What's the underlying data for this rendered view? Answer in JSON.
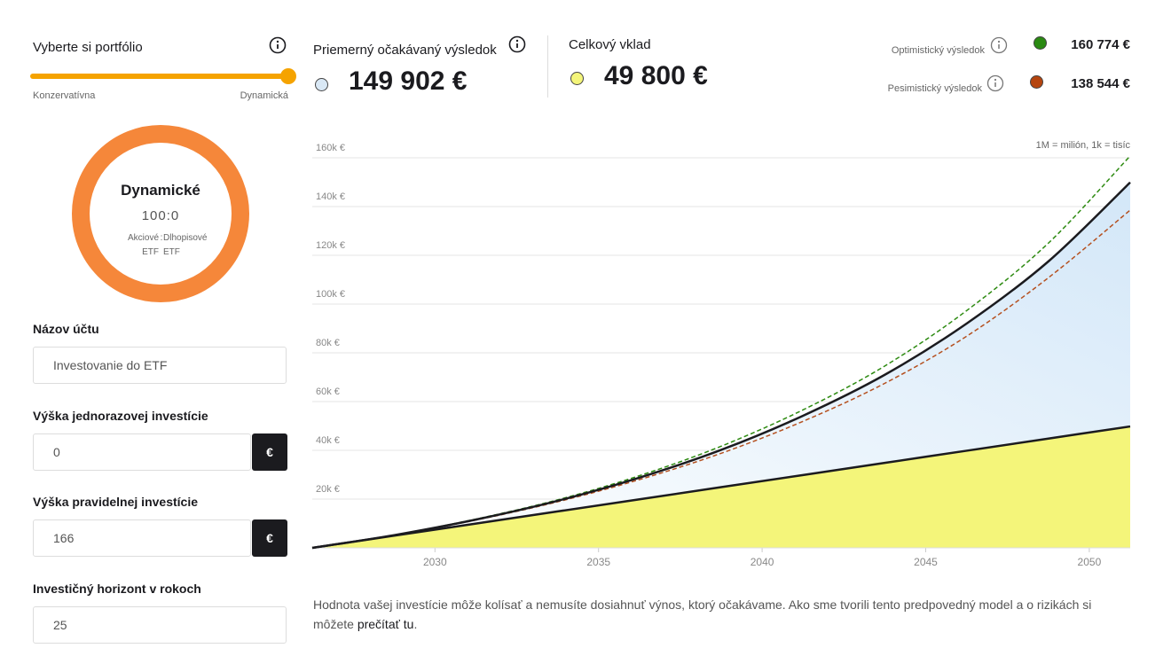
{
  "portfolio": {
    "title": "Vyberte si portfólio",
    "min_label": "Konzervatívna",
    "max_label": "Dynamická"
  },
  "donut": {
    "title": "Dynamické",
    "ratio": "100:0",
    "stock_label": "Akciové",
    "bond_label": "Dlhopisové",
    "separator": ":",
    "stock_unit": "ETF",
    "bond_unit": "ETF"
  },
  "form": {
    "fields": [
      {
        "label": "Názov účtu",
        "value": "Investovanie do ETF"
      },
      {
        "label": "Výška jednorazovej investície",
        "value": "0",
        "unit": "€"
      },
      {
        "label": "Výška pravidelnej investície",
        "value": "166",
        "unit": "€"
      },
      {
        "label": "Investičný horizont v rokoch",
        "value": "25"
      }
    ]
  },
  "footer": {
    "text": "Hodnota vašej investície môže kolísať a nemusíte dosiahnuť výnos, ktorý očakávame. Ako sme tvorili tento predpovedný model a o rizikách si môžete ",
    "link": "prečítať tu",
    "end": "."
  },
  "chart_data": {
    "type": "line",
    "annotation": "1M = milión, 1k = tisíc",
    "x": [
      2026.25,
      2028.75,
      2031.25,
      2033.75,
      2036.25,
      2038.75,
      2041.25,
      2043.75,
      2046.25,
      2048.75,
      2051.25
    ],
    "xlim": [
      2026.25,
      2051.25
    ],
    "xticks": [
      2030,
      2035,
      2040,
      2045,
      2050
    ],
    "ylim": [
      0,
      160000
    ],
    "yticks": [
      {
        "value": 20000,
        "label": "20k €"
      },
      {
        "value": 40000,
        "label": "40k €"
      },
      {
        "value": 60000,
        "label": "60k €"
      },
      {
        "value": 80000,
        "label": "80k €"
      },
      {
        "value": 100000,
        "label": "100k €"
      },
      {
        "value": 120000,
        "label": "120k €"
      },
      {
        "value": 140000,
        "label": "140k €"
      },
      {
        "value": 160000,
        "label": "160k €"
      }
    ],
    "grid": true,
    "series": [
      {
        "name": "Priemerný očakávaný výsledok",
        "color": "#1b1b1f",
        "marker_color": "#d9e8f5",
        "fill": "#d3e7f8",
        "values": [
          0,
          5200,
          11600,
          19300,
          28800,
          40200,
          54200,
          71000,
          92000,
          117500,
          149902
        ],
        "value_labels": [
          null,
          null,
          null,
          null,
          null,
          null,
          null,
          null,
          null,
          null,
          "149 902 €"
        ]
      },
      {
        "name": "Optimistický výsledok",
        "color": "#2e8b12",
        "marker_color": "#2a8a12",
        "dash": true,
        "values": [
          0,
          5250,
          11800,
          19700,
          29600,
          41700,
          56600,
          74600,
          97300,
          125000,
          160774
        ],
        "value_labels": [
          null,
          null,
          null,
          null,
          null,
          null,
          null,
          null,
          null,
          null,
          "160 774 €"
        ]
      },
      {
        "name": "Pesimistický výsledok",
        "color": "#b5501f",
        "marker_color": "#b5450f",
        "dash": true,
        "values": [
          0,
          5150,
          11400,
          18900,
          28000,
          38800,
          51900,
          67500,
          86800,
          110800,
          138544
        ],
        "value_labels": [
          null,
          null,
          null,
          null,
          null,
          null,
          null,
          null,
          null,
          null,
          "138 544 €"
        ]
      },
      {
        "name": "Celkový vklad",
        "color": "#1b1b1f",
        "marker_color": "#f4f57a",
        "fill": "#f4f57a",
        "values": [
          0,
          4980,
          9960,
          14940,
          19920,
          24900,
          29880,
          34860,
          39840,
          44820,
          49800
        ],
        "value_labels": [
          null,
          null,
          null,
          null,
          null,
          null,
          null,
          null,
          null,
          null,
          "49 800 €"
        ]
      }
    ]
  }
}
